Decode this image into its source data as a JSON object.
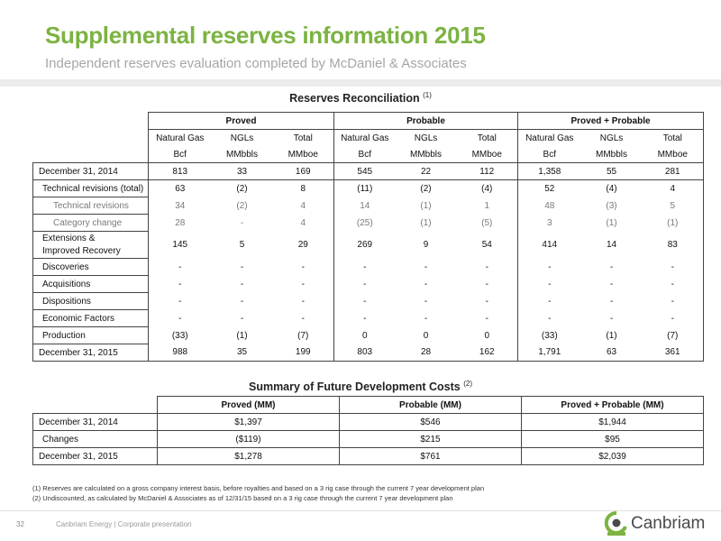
{
  "page": {
    "title": "Supplemental reserves information 2015",
    "subtitle": "Independent reserves evaluation completed by McDaniel & Associates",
    "page_number": "32",
    "footer": "Canbriam Energy  |  Corporate presentation",
    "logo_text": "Canbriam",
    "accent_color": "#7cb342"
  },
  "reconciliation": {
    "title": "Reserves Reconciliation",
    "title_note": "(1)",
    "groups": [
      "Proved",
      "Probable",
      "Proved + Probable"
    ],
    "col_names": [
      "Natural Gas",
      "NGLs",
      "Total",
      "Natural Gas",
      "NGLs",
      "Total",
      "Natural Gas",
      "NGLs",
      "Total"
    ],
    "col_units": [
      "Bcf",
      "MMbbls",
      "MMboe",
      "Bcf",
      "MMbbls",
      "MMboe",
      "Bcf",
      "MMbbls",
      "MMboe"
    ],
    "rows": [
      {
        "label": "December 31, 2014",
        "values": [
          "813",
          "33",
          "169",
          "545",
          "22",
          "112",
          "1,358",
          "55",
          "281"
        ]
      },
      {
        "label": "Technical revisions (total)",
        "values": [
          "63",
          "(2)",
          "8",
          "(11)",
          "(2)",
          "(4)",
          "52",
          "(4)",
          "4"
        ]
      },
      {
        "label": "Technical revisions",
        "values": [
          "34",
          "(2)",
          "4",
          "14",
          "(1)",
          "1",
          "48",
          "(3)",
          "5"
        ]
      },
      {
        "label": "Category change",
        "values": [
          "28",
          "-",
          "4",
          "(25)",
          "(1)",
          "(5)",
          "3",
          "(1)",
          "(1)"
        ]
      },
      {
        "label": "Extensions &",
        "label2": "Improved Recovery",
        "values": [
          "145",
          "5",
          "29",
          "269",
          "9",
          "54",
          "414",
          "14",
          "83"
        ]
      },
      {
        "label": "Discoveries",
        "values": [
          "-",
          "-",
          "-",
          "-",
          "-",
          "-",
          "-",
          "-",
          "-"
        ]
      },
      {
        "label": "Acquisitions",
        "values": [
          "-",
          "-",
          "-",
          "-",
          "-",
          "-",
          "-",
          "-",
          "-"
        ]
      },
      {
        "label": "Dispositions",
        "values": [
          "-",
          "-",
          "-",
          "-",
          "-",
          "-",
          "-",
          "-",
          "-"
        ]
      },
      {
        "label": "Economic Factors",
        "values": [
          "-",
          "-",
          "-",
          "-",
          "-",
          "-",
          "-",
          "-",
          "-"
        ]
      },
      {
        "label": "Production",
        "values": [
          "(33)",
          "(1)",
          "(7)",
          "0",
          "0",
          "0",
          "(33)",
          "(1)",
          "(7)"
        ]
      },
      {
        "label": "December 31, 2015",
        "values": [
          "988",
          "35",
          "199",
          "803",
          "28",
          "162",
          "1,791",
          "63",
          "361"
        ]
      }
    ]
  },
  "fdc": {
    "title": "Summary of Future Development Costs",
    "title_note": "(2)",
    "headers": [
      "Proved (MM)",
      "Probable (MM)",
      "Proved + Probable (MM)"
    ],
    "rows": [
      {
        "label": "December 31, 2014",
        "values": [
          "$1,397",
          "$546",
          "$1,944"
        ]
      },
      {
        "label": "Changes",
        "values": [
          "($119)",
          "$215",
          "$95"
        ]
      },
      {
        "label": "December 31, 2015",
        "values": [
          "$1,278",
          "$761",
          "$2,039"
        ]
      }
    ]
  },
  "notes": [
    "(1)   Reserves are calculated on a gross company interest basis, before royalties and based on a 3 rig case through the current 7 year development plan",
    "(2)   Undiscounted, as calculated by McDaniel & Associates as of 12/31/15 based on a 3 rig case through the current 7 year development plan"
  ]
}
